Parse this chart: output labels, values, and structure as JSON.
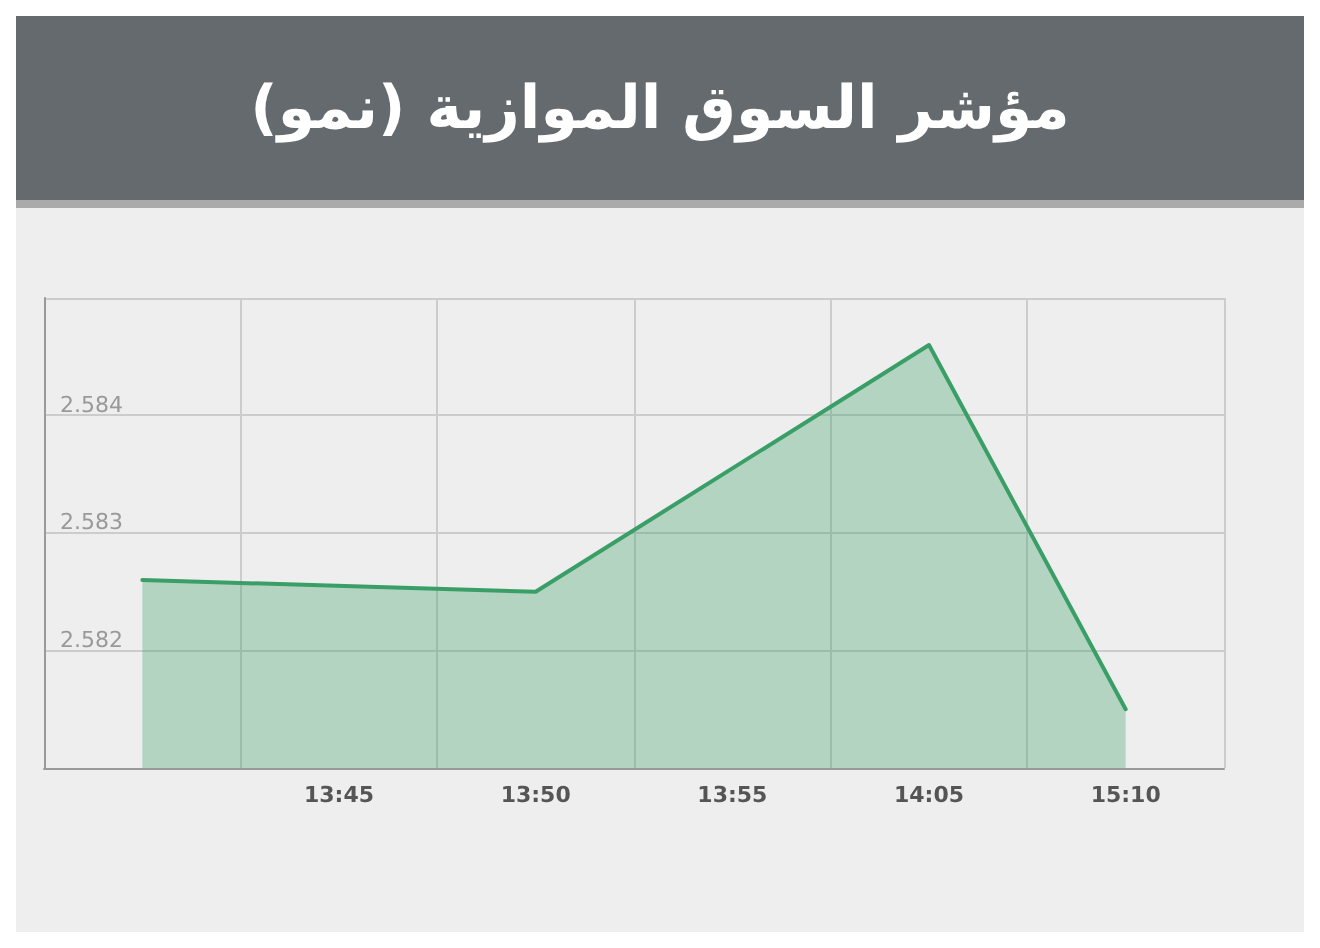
{
  "chart_data": {
    "type": "area",
    "title": "مؤشر السوق الموازية (نمو)",
    "categories": [
      null,
      "13:45",
      "13:50",
      "13:55",
      "14:05",
      "15:10"
    ],
    "series": [
      {
        "color": "#3a9e67",
        "values": [
          2.5826,
          null,
          2.5825,
          null,
          2.5846,
          2.5815
        ]
      }
    ],
    "ylim": [
      2.581,
      2.585
    ],
    "yticks": [
      2.582,
      2.583,
      2.584,
      {
        "value": 2.585,
        "label": null
      }
    ],
    "grid": true,
    "marker": "none",
    "line_style": "solid"
  }
}
